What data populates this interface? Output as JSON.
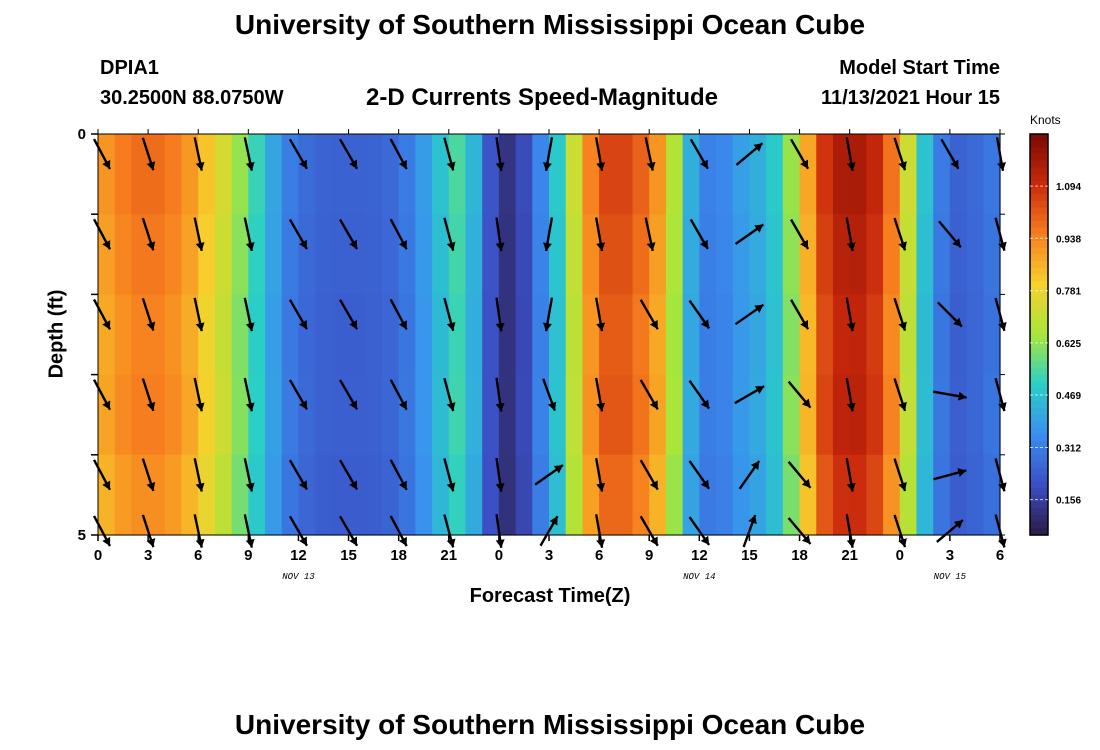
{
  "header": {
    "title": "University of Southern Mississippi Ocean Cube",
    "station": "DPIA1",
    "coords": "30.2500N  88.0750W",
    "subtitle": "2-D Currents Speed-Magnitude",
    "model_start_label": "Model Start Time",
    "model_start_value": "11/13/2021 Hour 15",
    "footer_title": "University of Southern Mississippi Ocean Cube"
  },
  "colors": {
    "scale": [
      "#2b1a45",
      "#3b4fc4",
      "#3a8ef0",
      "#2ad0c6",
      "#a8e63a",
      "#f7d12c",
      "#f77e1f",
      "#c9290c",
      "#7a0a03"
    ]
  },
  "chart_data": {
    "type": "heatmap",
    "title": "2-D Currents Speed-Magnitude",
    "xlabel": "Forecast Time(Z)",
    "ylabel": "Depth (ft)",
    "x_tick_labels": [
      "0",
      "3",
      "6",
      "9",
      "12",
      "15",
      "18",
      "21",
      "0",
      "3",
      "6",
      "9",
      "12",
      "15",
      "18",
      "21",
      "0",
      "3",
      "6"
    ],
    "x_hours": [
      0,
      3,
      6,
      9,
      12,
      15,
      18,
      21,
      24,
      27,
      30,
      33,
      36,
      39,
      42,
      45,
      48,
      51,
      54
    ],
    "date_labels": [
      {
        "text": "NOV 13",
        "hour": 12
      },
      {
        "text": "NOV 14",
        "hour": 36
      },
      {
        "text": "NOV 15",
        "hour": 51
      }
    ],
    "y_tick_labels": [
      "0",
      "5"
    ],
    "ylim": [
      0,
      5
    ],
    "xlim": [
      0,
      54
    ],
    "colorbar": {
      "label": "Knots",
      "ticks": [
        1.094,
        0.938,
        0.781,
        0.625,
        0.469,
        0.312,
        0.156
      ],
      "tick_labels": [
        "1.094",
        "0.938",
        "0.781",
        "0.625",
        "0.469",
        "0.312",
        "0.156"
      ],
      "range": [
        0.05,
        1.25
      ]
    },
    "speed_profile_knots": [
      [
        0,
        0.86
      ],
      [
        1,
        0.92
      ],
      [
        2,
        0.95
      ],
      [
        3,
        0.97
      ],
      [
        4,
        0.95
      ],
      [
        5,
        0.92
      ],
      [
        6,
        0.85
      ],
      [
        7,
        0.76
      ],
      [
        8,
        0.68
      ],
      [
        9,
        0.55
      ],
      [
        10,
        0.46
      ],
      [
        11,
        0.33
      ],
      [
        12,
        0.28
      ],
      [
        13,
        0.25
      ],
      [
        14,
        0.24
      ],
      [
        15,
        0.24
      ],
      [
        16,
        0.24
      ],
      [
        17,
        0.25
      ],
      [
        18,
        0.27
      ],
      [
        19,
        0.33
      ],
      [
        20,
        0.42
      ],
      [
        21,
        0.5
      ],
      [
        22,
        0.56
      ],
      [
        23,
        0.3
      ],
      [
        24,
        0.12
      ],
      [
        25,
        0.12
      ],
      [
        26,
        0.25
      ],
      [
        27,
        0.4
      ],
      [
        28,
        0.55
      ],
      [
        29,
        0.85
      ],
      [
        30,
        1.0
      ],
      [
        31,
        1.06
      ],
      [
        32,
        1.0
      ],
      [
        33,
        0.96
      ],
      [
        34,
        0.82
      ],
      [
        35,
        0.5
      ],
      [
        36,
        0.33
      ],
      [
        37,
        0.3
      ],
      [
        38,
        0.36
      ],
      [
        39,
        0.4
      ],
      [
        40,
        0.43
      ],
      [
        41,
        0.52
      ],
      [
        42,
        0.72
      ],
      [
        43,
        1.0
      ],
      [
        44,
        1.12
      ],
      [
        45,
        1.15
      ],
      [
        46,
        1.13
      ],
      [
        47,
        1.05
      ],
      [
        48,
        0.85
      ],
      [
        49,
        0.56
      ],
      [
        50,
        0.36
      ],
      [
        51,
        0.24
      ],
      [
        52,
        0.24
      ],
      [
        53,
        0.28
      ],
      [
        54,
        0.3
      ]
    ],
    "vectors": {
      "hours": [
        0,
        3,
        6,
        9,
        12,
        15,
        18,
        21,
        24,
        27,
        30,
        33,
        36,
        39,
        42,
        45,
        48,
        51,
        54
      ],
      "depths_ft": [
        0.25,
        1.25,
        2.25,
        3.25,
        4.25,
        5.0
      ],
      "direction_deg": [
        [
          152,
          162,
          168,
          168,
          150,
          150,
          152,
          165,
          172,
          190,
          170,
          168,
          150,
          50,
          150,
          170,
          162,
          150,
          170
        ],
        [
          152,
          162,
          168,
          168,
          150,
          150,
          152,
          165,
          172,
          190,
          170,
          168,
          150,
          55,
          150,
          170,
          162,
          140,
          165
        ],
        [
          152,
          162,
          168,
          168,
          150,
          150,
          152,
          165,
          172,
          190,
          170,
          150,
          145,
          55,
          150,
          170,
          162,
          135,
          165
        ],
        [
          152,
          162,
          168,
          168,
          150,
          150,
          152,
          165,
          172,
          160,
          170,
          150,
          145,
          60,
          140,
          170,
          162,
          100,
          165
        ],
        [
          152,
          162,
          168,
          168,
          150,
          150,
          152,
          165,
          172,
          55,
          170,
          150,
          145,
          35,
          140,
          170,
          162,
          75,
          165
        ],
        [
          152,
          162,
          168,
          168,
          150,
          150,
          152,
          165,
          172,
          30,
          170,
          150,
          145,
          20,
          140,
          170,
          162,
          50,
          165
        ]
      ]
    }
  }
}
